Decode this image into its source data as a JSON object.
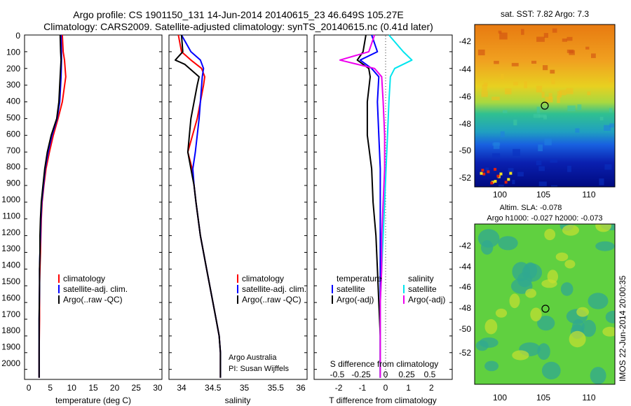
{
  "header": {
    "line1": "Argo profile: CS 1901150_131 14-Jun-2014 20140615_23 46.649S 105.27E",
    "line2": "Climatology: CARS2009. Satellite-adjusted climatology: synTS_20140615.nc (0.41d later)"
  },
  "colors": {
    "climatology": "#ff0000",
    "satellite": "#0000ff",
    "argo": "#000000",
    "salinity_satellite": "#00e5ee",
    "salinity_argo": "#ee00ee"
  },
  "chart_data": [
    {
      "type": "line",
      "panel": "temperature",
      "xlabel": "temperature (deg C)",
      "xlim": [
        -1,
        31
      ],
      "xticks": [
        "0",
        "5",
        "10",
        "15",
        "20",
        "25",
        "30"
      ],
      "ylim": [
        0,
        2060
      ],
      "yticks": [
        "0",
        "100",
        "200",
        "300",
        "400",
        "500",
        "600",
        "700",
        "800",
        "900",
        "1000",
        "1100",
        "1200",
        "1300",
        "1400",
        "1500",
        "1600",
        "1700",
        "1800",
        "1900",
        "2000"
      ],
      "legend": [
        "climatology",
        "satellite-adj. clim.",
        "Argo(..raw -QC)"
      ],
      "series": [
        {
          "name": "climatology",
          "color": "#ff0000",
          "x": [
            7.8,
            8.0,
            8.3,
            8.6,
            7.8,
            6.8,
            5.7,
            4.8,
            4.0,
            3.5,
            3.1,
            2.9,
            2.8,
            2.7,
            2.6,
            2.5,
            2.5,
            2.4,
            2.4
          ],
          "y": [
            0,
            100,
            150,
            250,
            400,
            500,
            600,
            700,
            800,
            900,
            1000,
            1100,
            1200,
            1300,
            1400,
            1500,
            1700,
            1900,
            2050
          ]
        },
        {
          "name": "satellite-adj. clim.",
          "color": "#0000ff",
          "x": [
            7.5,
            7.6,
            7.6,
            7.5,
            7.2,
            6.6,
            5.4,
            4.5,
            3.8,
            3.4,
            3.0,
            2.8,
            2.7,
            2.6,
            2.5,
            2.5,
            2.4,
            2.4,
            2.4
          ],
          "y": [
            0,
            100,
            150,
            250,
            400,
            500,
            600,
            700,
            800,
            900,
            1000,
            1100,
            1200,
            1300,
            1400,
            1500,
            1700,
            1900,
            2050
          ]
        },
        {
          "name": "Argo(..raw -QC)",
          "color": "#000000",
          "x": [
            7.3,
            7.4,
            7.5,
            7.3,
            7.0,
            6.5,
            5.2,
            4.3,
            3.7,
            3.3,
            2.9,
            2.7,
            2.6,
            2.6,
            2.5,
            2.5,
            2.4,
            2.4,
            2.4
          ],
          "y": [
            0,
            100,
            150,
            250,
            400,
            500,
            600,
            700,
            800,
            900,
            1000,
            1100,
            1200,
            1300,
            1400,
            1500,
            1700,
            1900,
            2050
          ]
        }
      ]
    },
    {
      "type": "line",
      "panel": "salinity",
      "xlabel": "salinity",
      "xlim": [
        33.9,
        36.1
      ],
      "xticks": [
        "34",
        "34.5",
        "35",
        "35.5",
        "36"
      ],
      "ylim": [
        0,
        2060
      ],
      "legend": [
        "climatology",
        "satellite-adj. clim.",
        "Argo(..raw -QC)"
      ],
      "annotation": [
        "Argo Australia",
        "PI: Susan Wijffels"
      ],
      "series": [
        {
          "name": "climatology",
          "color": "#ff0000",
          "x": [
            34.05,
            34.1,
            34.25,
            34.42,
            34.47,
            34.45,
            34.35,
            34.2,
            34.27,
            34.3,
            34.33,
            34.4,
            34.5,
            34.55,
            34.6,
            34.65,
            34.7,
            34.72,
            34.72
          ],
          "y": [
            0,
            100,
            150,
            200,
            250,
            300,
            500,
            700,
            800,
            900,
            1000,
            1200,
            1400,
            1500,
            1600,
            1700,
            1800,
            1900,
            2050
          ]
        },
        {
          "name": "satellite-adj. clim.",
          "color": "#0000ff",
          "x": [
            34.1,
            34.25,
            34.4,
            34.45,
            34.43,
            34.42,
            34.38,
            34.32,
            34.28,
            34.3,
            34.33,
            34.4,
            34.5,
            34.55,
            34.6,
            34.65,
            34.7,
            34.72,
            34.72
          ],
          "y": [
            0,
            100,
            150,
            200,
            250,
            300,
            500,
            700,
            800,
            900,
            1000,
            1200,
            1400,
            1500,
            1600,
            1700,
            1800,
            1900,
            2050
          ]
        },
        {
          "name": "Argo(..raw -QC)",
          "color": "#000000",
          "x": [
            34.1,
            34.12,
            34.0,
            34.15,
            34.38,
            34.35,
            34.25,
            34.2,
            34.25,
            34.3,
            34.33,
            34.4,
            34.5,
            34.55,
            34.6,
            34.65,
            34.7,
            34.72,
            34.72
          ],
          "y": [
            0,
            100,
            150,
            175,
            250,
            300,
            500,
            700,
            800,
            900,
            1000,
            1200,
            1400,
            1500,
            1600,
            1700,
            1800,
            1900,
            2050
          ]
        }
      ]
    },
    {
      "type": "line",
      "panel": "difference",
      "xlabel": "T difference from climatology",
      "xlim": [
        -2.3,
        2.5
      ],
      "xticks": [
        "-2",
        "-1",
        "0",
        "1",
        "2"
      ],
      "top_label": "S difference from climatology",
      "top_ticks": [
        "-0.5",
        "-0.25",
        "0",
        "0.25",
        "0.5"
      ],
      "ylim": [
        0,
        2060
      ],
      "legend_temperature": [
        "temperature",
        "satellite",
        "Argo(-adj)"
      ],
      "legend_salinity": [
        "salinity",
        "satellite",
        "Argo(-adj)"
      ],
      "series": [
        {
          "name": "satellite",
          "color": "#0000ff",
          "x": [
            -0.3,
            -0.1,
            -0.7,
            -0.3,
            -0.05,
            -0.1,
            -0.05,
            0.0,
            0.0,
            0.0,
            0.0,
            0.0,
            0.0,
            0.0,
            0.0
          ],
          "y": [
            0,
            100,
            150,
            200,
            250,
            400,
            600,
            800,
            1000,
            1200,
            1400,
            1600,
            1800,
            1900,
            2050
          ]
        },
        {
          "name": "Argo(-adj)",
          "color": "#000000",
          "x": [
            -0.5,
            -0.6,
            -0.8,
            -0.4,
            -0.35,
            -0.45,
            -0.45,
            -0.3,
            -0.25,
            -0.15,
            -0.1,
            -0.05,
            0.0,
            0.0,
            0.0
          ],
          "y": [
            0,
            100,
            150,
            200,
            250,
            400,
            600,
            800,
            1000,
            1200,
            1400,
            1600,
            1800,
            1900,
            2050
          ]
        },
        {
          "name": "satellite",
          "color": "#00e5ee",
          "x": [
            0.3,
            0.8,
            1.1,
            0.5,
            0.35,
            0.3,
            0.25,
            0.2,
            0.15,
            0.1,
            0.05,
            0.0,
            0.0,
            0.0,
            0.0
          ],
          "y": [
            0,
            100,
            150,
            200,
            250,
            400,
            600,
            800,
            1000,
            1200,
            1400,
            1600,
            1800,
            1900,
            2050
          ]
        },
        {
          "name": "Argo(-adj)",
          "color": "#ee00ee",
          "x": [
            -0.2,
            -0.4,
            -1.4,
            -0.2,
            0.05,
            0.1,
            0.15,
            0.15,
            0.1,
            0.05,
            0.05,
            0.0,
            0.0,
            0.0,
            0.0
          ],
          "y": [
            0,
            100,
            150,
            200,
            250,
            400,
            600,
            800,
            1000,
            1200,
            1400,
            1600,
            1800,
            1900,
            2050
          ]
        }
      ]
    },
    {
      "type": "heatmap",
      "panel": "sst-map",
      "title": "sat. SST: 7.82 Argo: 7.3",
      "xticks": [
        "100",
        "105",
        "110"
      ],
      "yticks": [
        "-42",
        "-44",
        "-46",
        "-48",
        "-50",
        "-52"
      ],
      "xlim": [
        98,
        113
      ],
      "ylim": [
        -53,
        -41
      ],
      "marker": {
        "lon": 105.27,
        "lat": -46.649
      }
    },
    {
      "type": "heatmap",
      "panel": "sla-map",
      "title": [
        "Altim. SLA: -0.078",
        "Argo h1000: -0.027 h2000: -0.073"
      ],
      "xticks": [
        "100",
        "105",
        "110"
      ],
      "yticks": [
        "-42",
        "-44",
        "-46",
        "-48",
        "-50",
        "-52"
      ],
      "xlim": [
        98,
        113
      ],
      "ylim": [
        -53,
        -41
      ],
      "marker": {
        "lon": 105.27,
        "lat": -46.649
      }
    }
  ],
  "side_label": "IMOS 22-Jun-2014 20:00:35"
}
